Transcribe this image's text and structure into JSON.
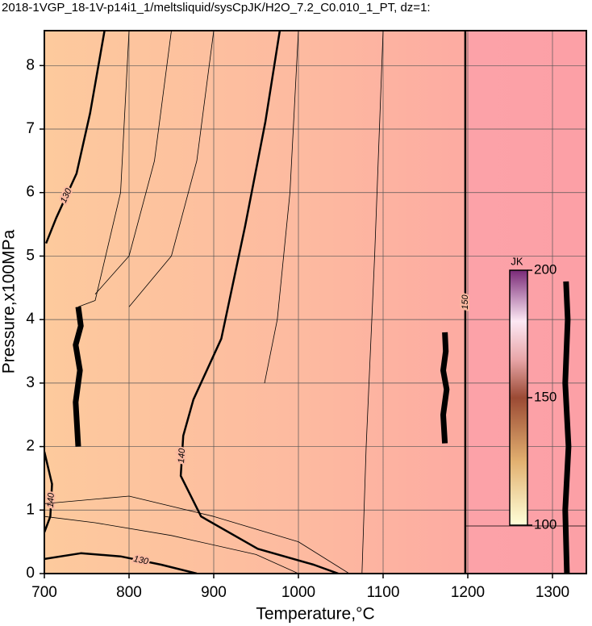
{
  "chart_data": {
    "type": "contour",
    "title": "2018-1VGP_18-1V-p14i1_1/meltsliquid/sysCpJK/H2O_7.2_C0.010_1_PT, dz=1:",
    "x_label": "Temperature,°C",
    "y_label": "Pressure,x100MPa",
    "xlim": [
      700,
      1340
    ],
    "ylim": [
      0,
      8.55
    ],
    "xticks": [
      700,
      800,
      900,
      1000,
      1100,
      1200,
      1300
    ],
    "yticks": [
      0,
      1,
      2,
      3,
      4,
      5,
      6,
      7,
      8
    ],
    "grid": true,
    "contours": [
      {
        "level": 130,
        "bold": true,
        "x": [
          771,
          754,
          738,
          714,
          702
        ],
        "y": [
          8.55,
          7.25,
          6.3,
          5.6,
          5.2
        ]
      },
      {
        "level": 130,
        "bold": true,
        "x": [
          700,
          743,
          790,
          838,
          880
        ],
        "y": [
          0.23,
          0.32,
          0.27,
          0.14,
          0
        ]
      },
      {
        "level": 140,
        "bold": true,
        "x": [
          978,
          961,
          937,
          909,
          876,
          864,
          861,
          885,
          952,
          1018,
          1047
        ],
        "y": [
          8.55,
          7.12,
          5.47,
          3.7,
          2.74,
          2.17,
          1.54,
          0.9,
          0.39,
          0.14,
          0
        ]
      },
      {
        "level": 140,
        "bold": true,
        "x": [
          700,
          709,
          707,
          700
        ],
        "y": [
          1.92,
          1.41,
          0.9,
          0.65
        ]
      },
      {
        "level": 150,
        "bold": true,
        "x": [
          1197,
          1197
        ],
        "y": [
          0,
          8.55
        ]
      },
      {
        "level": null,
        "bold": true,
        "x": [
          740,
          737,
          742,
          737,
          743,
          740
        ],
        "y": [
          2.0,
          2.7,
          3.2,
          3.6,
          3.9,
          4.2
        ]
      },
      {
        "level": null,
        "bold": true,
        "x": [
          1173,
          1171,
          1175,
          1171,
          1174,
          1173
        ],
        "y": [
          2.05,
          2.5,
          2.9,
          3.2,
          3.5,
          3.8
        ]
      },
      {
        "level": null,
        "bold": true,
        "x": [
          1317,
          1315,
          1319,
          1315,
          1318,
          1316
        ],
        "y": [
          0,
          1.0,
          2.0,
          3.0,
          4.0,
          4.6
        ]
      },
      {
        "level": null,
        "bold": false,
        "x": [
          800,
          790,
          760,
          740
        ],
        "y": [
          8.55,
          6,
          4.3,
          4.2
        ]
      },
      {
        "level": null,
        "bold": false,
        "x": [
          850,
          830,
          800,
          760
        ],
        "y": [
          8.55,
          6.5,
          5,
          4.4
        ]
      },
      {
        "level": null,
        "bold": false,
        "x": [
          900,
          880,
          850,
          800
        ],
        "y": [
          8.55,
          6.5,
          5,
          4.2
        ]
      },
      {
        "level": null,
        "bold": false,
        "x": [
          1000,
          990,
          975,
          960
        ],
        "y": [
          8.55,
          6,
          4,
          3
        ]
      },
      {
        "level": null,
        "bold": false,
        "x": [
          1100,
          1090,
          1080,
          1075
        ],
        "y": [
          8.55,
          5,
          2,
          0
        ]
      },
      {
        "level": null,
        "bold": false,
        "x": [
          700,
          760,
          850,
          950,
          1000
        ],
        "y": [
          0.9,
          0.8,
          0.6,
          0.3,
          0
        ]
      },
      {
        "level": null,
        "bold": false,
        "x": [
          700,
          800,
          900,
          1000,
          1060
        ],
        "y": [
          1.1,
          1.22,
          0.9,
          0.5,
          0
        ]
      },
      {
        "level": null,
        "bold": false,
        "x": [
          1197,
          1340
        ],
        "y": [
          0.75,
          0.75
        ]
      }
    ],
    "colorbar": {
      "label": "JK",
      "lim": [
        100,
        200
      ],
      "ticks": [
        100,
        150,
        200
      ]
    }
  }
}
